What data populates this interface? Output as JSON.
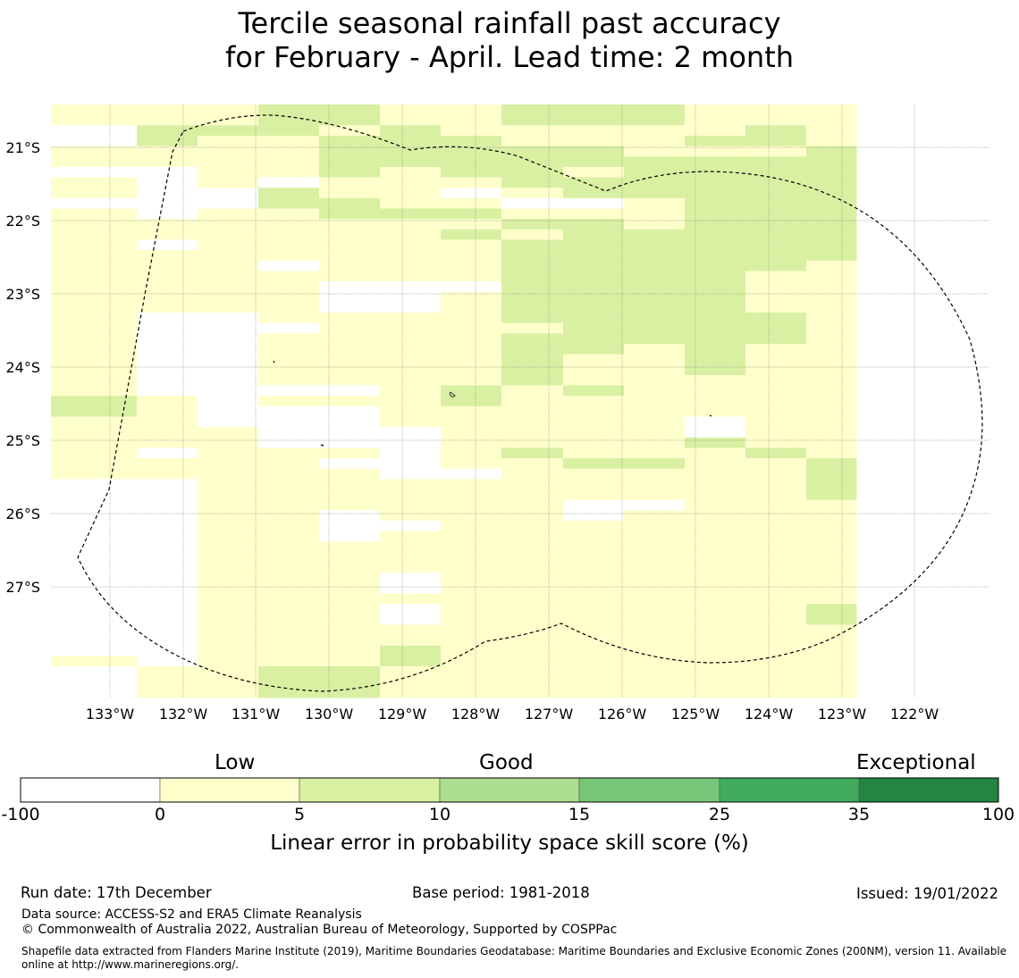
{
  "title": {
    "line1": "Tercile seasonal rainfall past accuracy",
    "line2": "for February - April. Lead time: 2 month"
  },
  "map": {
    "lon_labels": [
      "133°W",
      "132°W",
      "131°W",
      "130°W",
      "129°W",
      "128°W",
      "127°W",
      "126°W",
      "125°W",
      "124°W",
      "123°W",
      "122°W"
    ],
    "lat_labels": [
      "21°S",
      "22°S",
      "23°S",
      "24°S",
      "25°S",
      "26°S",
      "27°S"
    ],
    "grid_rows": [
      "1112211222111",
      "1112211222111",
      "0222121111121",
      "0211222111221",
      "1111222221112",
      "1111222222222",
      "0011212212222",
      "1010111222222",
      "1002110122222",
      "0002211001222",
      "1011222111222",
      "1111111221222",
      "1111112122222",
      "1011111222222",
      "1111111222222",
      "1110111222221",
      "1111111222211",
      "1111000222211",
      "1111001222211",
      "1111001222211",
      "1001111222221",
      "1000111122221",
      "1001111222221",
      "1001111221211",
      "1001111211211",
      "1001111211211",
      "1001111211111",
      "1000012121111",
      "2101112111111",
      "2100011111111",
      "1100011111011",
      "1110001111011",
      "1110001111211",
      "1011101211121",
      "1111001122112",
      "1111100111112",
      "0011111111112",
      "0011111111112",
      "0011111100111",
      "0011011101111",
      "0011001111111",
      "0011011111111",
      "0011111111111",
      "0011111111111",
      "0011111111111",
      "0011101111111",
      "0011101111111",
      "0011111111111",
      "0011101111112",
      "0011101111112",
      "0011111111111",
      "0011111111111",
      "0011121111111",
      "1011121111111",
      "0112211111111",
      "0112211111111",
      "0112211111111"
    ]
  },
  "colorbar": {
    "categories": [
      "Low",
      "Good",
      "Exceptional"
    ],
    "ticks": [
      "-100",
      "0",
      "5",
      "10",
      "15",
      "25",
      "35",
      "100"
    ],
    "colors": [
      "#ffffff",
      "#ffffcc",
      "#d9f0a3",
      "#addd8e",
      "#78c679",
      "#41ab5d",
      "#238443"
    ],
    "label": "Linear error in probability space skill score (%)"
  },
  "footer": {
    "run_date": "Run date: 17th December",
    "base_period": "Base period: 1981-2018",
    "issued": "Issued: 19/01/2022",
    "data_source": "Data source: ACCESS-S2 and ERA5 Climate Reanalysis",
    "copyright": "© Commonwealth of Australia 2022, Australian Bureau of Meteorology, Supported by COSPPac",
    "shapefile": "Shapefile data extracted from Flanders Marine Institute (2019), Maritime Boundaries Geodatabase: Maritime Boundaries and Exclusive Economic Zones (200NM), version 11. Available online at http://www.marineregions.org/."
  }
}
